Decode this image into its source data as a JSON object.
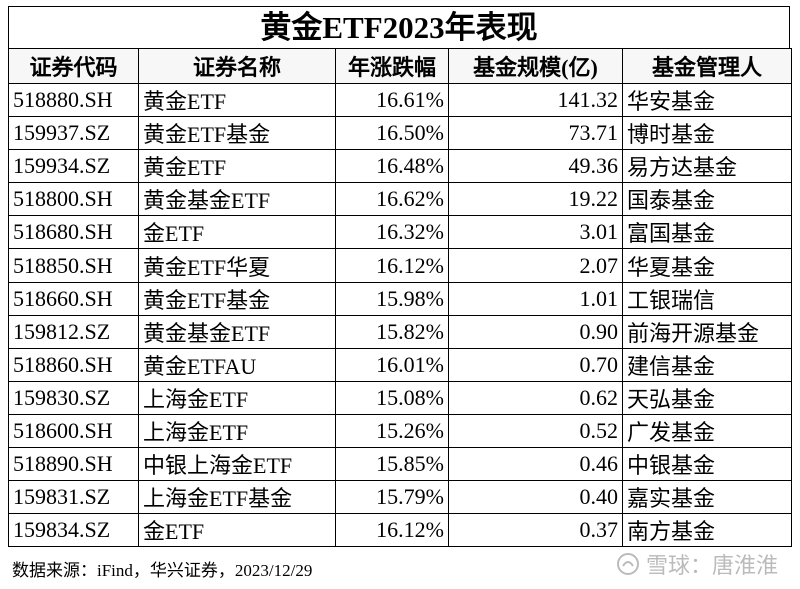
{
  "title": "黄金ETF2023年表现",
  "table": {
    "header": [
      "证券代码",
      "证券名称",
      "年涨跌幅",
      "基金规模(亿)",
      "基金管理人"
    ],
    "rows": [
      [
        "518880.SH",
        "黄金ETF",
        "16.61%",
        "141.32",
        "华安基金"
      ],
      [
        "159937.SZ",
        "黄金ETF基金",
        "16.50%",
        "73.71",
        "博时基金"
      ],
      [
        "159934.SZ",
        "黄金ETF",
        "16.48%",
        "49.36",
        "易方达基金"
      ],
      [
        "518800.SH",
        "黄金基金ETF",
        "16.62%",
        "19.22",
        "国泰基金"
      ],
      [
        "518680.SH",
        "金ETF",
        "16.32%",
        "3.01",
        "富国基金"
      ],
      [
        "518850.SH",
        "黄金ETF华夏",
        "16.12%",
        "2.07",
        "华夏基金"
      ],
      [
        "518660.SH",
        "黄金ETF基金",
        "15.98%",
        "1.01",
        "工银瑞信"
      ],
      [
        "159812.SZ",
        "黄金基金ETF",
        "15.82%",
        "0.90",
        "前海开源基金"
      ],
      [
        "518860.SH",
        "黄金ETFAU",
        "16.01%",
        "0.70",
        "建信基金"
      ],
      [
        "159830.SZ",
        "上海金ETF",
        "15.08%",
        "0.62",
        "天弘基金"
      ],
      [
        "518600.SH",
        "上海金ETF",
        "15.26%",
        "0.52",
        "广发基金"
      ],
      [
        "518890.SH",
        "中银上海金ETF",
        "15.85%",
        "0.46",
        "中银基金"
      ],
      [
        "159831.SZ",
        "上海金ETF基金",
        "15.79%",
        "0.40",
        "嘉实基金"
      ],
      [
        "159834.SZ",
        "金ETF",
        "16.12%",
        "0.37",
        "南方基金"
      ]
    ]
  },
  "source": "数据来源：iFind，华兴证券，2023/12/29",
  "watermark": "雪球：唐淮淮"
}
